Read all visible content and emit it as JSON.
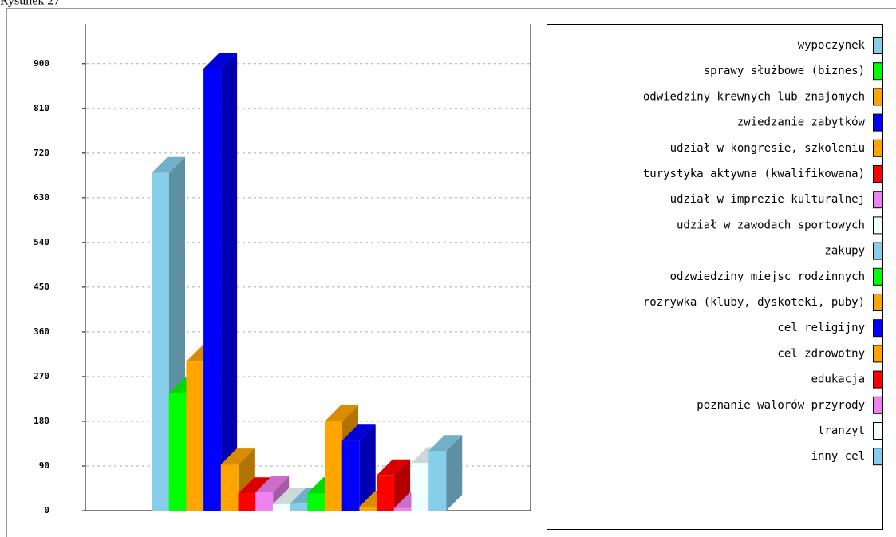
{
  "chart_data": {
    "type": "bar3d",
    "title": "Rysunek 27",
    "categories": [
      "wypoczynek",
      "sprawy służbowe (biznes)",
      "odwiedziny krewnych lub znajomych",
      "zwiedzanie zabytków",
      "udział w kongresie, szkoleniu",
      "turystyka aktywna (kwalifikowana)",
      "udział w imprezie kulturalnej",
      "udział w zawodach sportowych",
      "zakupy",
      "odzwiedziny miejsc rodzinnych",
      "rozrywka (kluby, dyskoteki, puby)",
      "cel religijny",
      "cel zdrowotny",
      "edukacja",
      "poznanie walorów przyrody",
      "tranzyt",
      "inny cel"
    ],
    "values": [
      680,
      236,
      300,
      890,
      93,
      35,
      37,
      13,
      14,
      35,
      180,
      141,
      8,
      71,
      5,
      96,
      120
    ],
    "colors": [
      "#87ceeb",
      "#00ff00",
      "#ffa500",
      "#0000ff",
      "#ffa500",
      "#ff0000",
      "#ee82ee",
      "#f0ffff",
      "#87ceeb",
      "#00ff00",
      "#ffa500",
      "#0000ff",
      "#ffa500",
      "#ff0000",
      "#ee82ee",
      "#f0ffff",
      "#87ceeb"
    ],
    "ylim": [
      0,
      980
    ],
    "yticks": [
      0,
      90,
      180,
      270,
      360,
      450,
      540,
      630,
      720,
      810,
      900
    ],
    "grid": true
  }
}
